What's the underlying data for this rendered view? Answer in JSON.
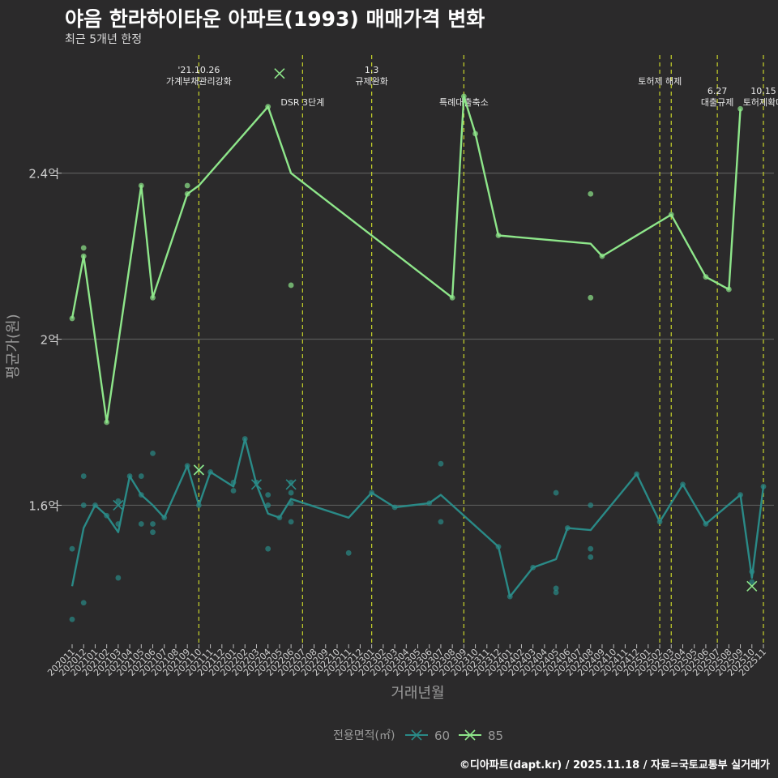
{
  "header": {
    "title": "야음 한라하이타운 아파트(1993) 매매가격 변화",
    "subtitle": "최근 5개년 한정"
  },
  "caption": "©디아파트(dapt.kr) / 2025.11.18 / 자료=국토교통부 실거래가",
  "colors": {
    "background": "#2b2a2b",
    "series_60": "#2a8a87",
    "series_85": "#8ee68a",
    "event_line": "#c8d42a",
    "grid": "#5a5a5a"
  },
  "chart_data": {
    "type": "line",
    "title": "야음 한라하이타운 아파트(1993) 매매가격 변화",
    "xlabel": "거래년월",
    "ylabel": "평균가(원)",
    "ylim": [
      1.265,
      2.7
    ],
    "y_ticks": [
      {
        "value": 1.6,
        "label": "1.6억"
      },
      {
        "value": 2.0,
        "label": "2억"
      },
      {
        "value": 2.4,
        "label": "2.4억"
      }
    ],
    "x_ticks": [
      "202011",
      "202012",
      "202101",
      "202102",
      "202103",
      "202104",
      "202105",
      "202106",
      "202107",
      "202108",
      "202109",
      "202110",
      "202111",
      "202112",
      "202201",
      "202202",
      "202203",
      "202204",
      "202205",
      "202206",
      "202207",
      "202208",
      "202209",
      "202210",
      "202211",
      "202212",
      "202301",
      "202302",
      "202303",
      "202304",
      "202305",
      "202306",
      "202307",
      "202308",
      "202309",
      "202310",
      "202311",
      "202312",
      "202401",
      "202402",
      "202403",
      "202404",
      "202405",
      "202406",
      "202407",
      "202408",
      "202409",
      "202410",
      "202411",
      "202412",
      "202501",
      "202502",
      "202503",
      "202504",
      "202505",
      "202506",
      "202507",
      "202508",
      "202509",
      "202510",
      "202511"
    ],
    "legend": {
      "title": "전용면적(㎡)",
      "position": "bottom",
      "entries": [
        "60",
        "85"
      ]
    },
    "series": [
      {
        "name": "60",
        "line": [
          [
            0,
            1.405
          ],
          [
            1,
            1.545
          ],
          [
            2,
            1.6
          ],
          [
            3,
            1.575
          ],
          [
            4,
            1.535
          ],
          [
            5,
            1.67
          ],
          [
            6,
            1.625
          ],
          [
            7,
            1.6
          ],
          [
            8,
            1.57
          ],
          [
            10,
            1.695
          ],
          [
            11,
            1.6
          ],
          [
            12,
            1.68
          ],
          [
            14,
            1.645
          ],
          [
            15,
            1.76
          ],
          [
            16,
            1.65
          ],
          [
            17,
            1.58
          ],
          [
            18,
            1.57
          ],
          [
            19,
            1.615
          ],
          [
            24,
            1.57
          ],
          [
            26,
            1.63
          ],
          [
            28,
            1.595
          ],
          [
            31,
            1.605
          ],
          [
            32,
            1.625
          ],
          [
            37,
            1.5
          ],
          [
            38,
            1.38
          ],
          [
            40,
            1.45
          ],
          [
            42,
            1.47
          ],
          [
            43,
            1.545
          ],
          [
            45,
            1.54
          ],
          [
            49,
            1.675
          ],
          [
            51,
            1.56
          ],
          [
            53,
            1.65
          ],
          [
            55,
            1.555
          ],
          [
            58,
            1.625
          ],
          [
            59,
            1.425
          ],
          [
            60,
            1.645
          ]
        ],
        "points": [
          [
            0,
            1.495
          ],
          [
            0,
            1.325
          ],
          [
            1,
            1.67
          ],
          [
            1,
            1.6
          ],
          [
            1,
            1.365
          ],
          [
            2,
            1.6
          ],
          [
            3,
            1.575
          ],
          [
            4,
            1.61
          ],
          [
            4,
            1.555
          ],
          [
            4,
            1.425
          ],
          [
            5,
            1.67
          ],
          [
            6,
            1.67
          ],
          [
            6,
            1.625
          ],
          [
            6,
            1.555
          ],
          [
            7,
            1.725
          ],
          [
            7,
            1.555
          ],
          [
            7,
            1.535
          ],
          [
            8,
            1.57
          ],
          [
            10,
            1.695
          ],
          [
            11,
            1.6
          ],
          [
            12,
            1.68
          ],
          [
            14,
            1.655
          ],
          [
            14,
            1.635
          ],
          [
            15,
            1.76
          ],
          [
            16,
            1.655
          ],
          [
            17,
            1.625
          ],
          [
            17,
            1.6
          ],
          [
            17,
            1.495
          ],
          [
            18,
            1.57
          ],
          [
            19,
            1.655
          ],
          [
            19,
            1.63
          ],
          [
            19,
            1.605
          ],
          [
            19,
            1.56
          ],
          [
            24,
            1.485
          ],
          [
            26,
            1.63
          ],
          [
            28,
            1.595
          ],
          [
            31,
            1.605
          ],
          [
            32,
            1.7
          ],
          [
            32,
            1.56
          ],
          [
            37,
            1.5
          ],
          [
            38,
            1.38
          ],
          [
            40,
            1.45
          ],
          [
            42,
            1.63
          ],
          [
            42,
            1.39
          ],
          [
            42,
            1.4
          ],
          [
            43,
            1.545
          ],
          [
            45,
            1.6
          ],
          [
            45,
            1.495
          ],
          [
            45,
            1.475
          ],
          [
            49,
            1.675
          ],
          [
            51,
            1.56
          ],
          [
            53,
            1.65
          ],
          [
            55,
            1.555
          ],
          [
            58,
            1.625
          ],
          [
            59,
            1.44
          ],
          [
            59,
            1.415
          ],
          [
            60,
            1.645
          ]
        ],
        "crosses": [
          [
            4,
            1.6
          ],
          [
            11,
            1.685
          ],
          [
            16,
            1.65
          ],
          [
            19,
            1.65
          ]
        ]
      },
      {
        "name": "85",
        "line": [
          [
            0,
            2.05
          ],
          [
            1,
            2.2
          ],
          [
            3,
            1.8
          ],
          [
            6,
            2.37
          ],
          [
            7,
            2.1
          ],
          [
            10,
            2.35
          ],
          [
            11,
            2.37
          ],
          [
            17,
            2.56
          ],
          [
            19,
            2.4
          ],
          [
            33,
            2.1
          ],
          [
            34,
            2.585
          ],
          [
            35,
            2.495
          ],
          [
            37,
            2.25
          ],
          [
            45,
            2.23
          ],
          [
            46,
            2.2
          ],
          [
            52,
            2.3
          ],
          [
            55,
            2.15
          ],
          [
            57,
            2.12
          ],
          [
            58,
            2.555
          ]
        ],
        "points": [
          [
            0,
            2.05
          ],
          [
            1,
            2.22
          ],
          [
            1,
            2.2
          ],
          [
            3,
            1.8
          ],
          [
            6,
            2.37
          ],
          [
            7,
            2.1
          ],
          [
            10,
            2.37
          ],
          [
            10,
            2.35
          ],
          [
            17,
            2.56
          ],
          [
            19,
            2.13
          ],
          [
            33,
            2.1
          ],
          [
            34,
            2.585
          ],
          [
            35,
            2.495
          ],
          [
            37,
            2.25
          ],
          [
            45,
            2.35
          ],
          [
            45,
            2.1
          ],
          [
            46,
            2.2
          ],
          [
            52,
            2.3
          ],
          [
            55,
            2.15
          ],
          [
            57,
            2.12
          ],
          [
            58,
            2.555
          ]
        ],
        "crosses": [
          [
            11,
            1.685
          ],
          [
            18,
            2.64
          ],
          [
            59,
            1.405
          ]
        ]
      }
    ],
    "events": [
      {
        "x": 11,
        "lines": [
          "'21.10.26",
          "가계부채관리강화"
        ],
        "label_level": 0
      },
      {
        "x": 20,
        "lines": [
          "DSR 3단계"
        ],
        "label_level": 1
      },
      {
        "x": 26,
        "lines": [
          "1.3",
          "규제완화"
        ],
        "label_level": 0
      },
      {
        "x": 34,
        "lines": [
          "특례대출축소"
        ],
        "label_level": 1
      },
      {
        "x": 51,
        "lines": [],
        "label_level": 0
      },
      {
        "x": 52,
        "lines": [
          "토허제 해제"
        ],
        "label_level": 0,
        "label_offset": -0.5
      },
      {
        "x": 56,
        "lines": [
          "6.27",
          "대출규제"
        ],
        "label_level": 1
      },
      {
        "x": 60,
        "lines": [
          "10.15",
          "토허제확대"
        ],
        "label_level": 1
      }
    ]
  }
}
